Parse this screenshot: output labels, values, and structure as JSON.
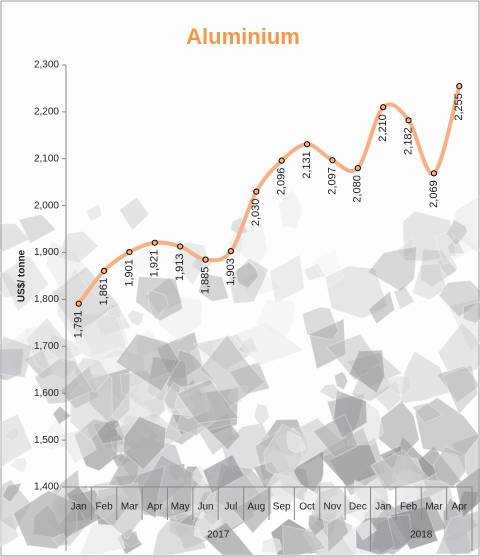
{
  "chart_data": {
    "type": "line",
    "title": "Aluminium",
    "y_label": "US$/ tonne",
    "category_groups": [
      {
        "label": "2017",
        "categories": [
          "Jan",
          "Feb",
          "Mar",
          "Apr",
          "May",
          "Jun",
          "Jul",
          "Aug",
          "Sep",
          "Oct",
          "Nov",
          "Dec"
        ]
      },
      {
        "label": "2018",
        "categories": [
          "Jan",
          "Feb",
          "Mar",
          "Apr"
        ]
      }
    ],
    "series": [
      {
        "name": "Aluminium",
        "color": "#f4b183",
        "values": [
          1791,
          1861,
          1901,
          1921,
          1913,
          1885,
          1903,
          2030,
          2096,
          2131,
          2097,
          2080,
          2210,
          2182,
          2069,
          2255
        ],
        "value_labels": [
          "1,791",
          "1,861",
          "1,901",
          "1,921",
          "1,913",
          "1,885",
          "1,903",
          "2,030",
          "2,096",
          "2,131",
          "2,097",
          "2,080",
          "2,210",
          "2,182",
          "2,069",
          "2,255"
        ]
      }
    ],
    "ylim": [
      1400,
      2300
    ],
    "yticks": [
      {
        "value": 1400,
        "label": "1,400"
      },
      {
        "value": 1500,
        "label": "1,500"
      },
      {
        "value": 1600,
        "label": "1,600"
      },
      {
        "value": 1700,
        "label": "1,700"
      },
      {
        "value": 1800,
        "label": "1,800"
      },
      {
        "value": 1900,
        "label": "1,900"
      },
      {
        "value": 2000,
        "label": "2,000"
      },
      {
        "value": 2100,
        "label": "2,100"
      },
      {
        "value": 2200,
        "label": "2,200"
      },
      {
        "value": 2300,
        "label": "2,300"
      }
    ],
    "title_color": "#f79646"
  }
}
